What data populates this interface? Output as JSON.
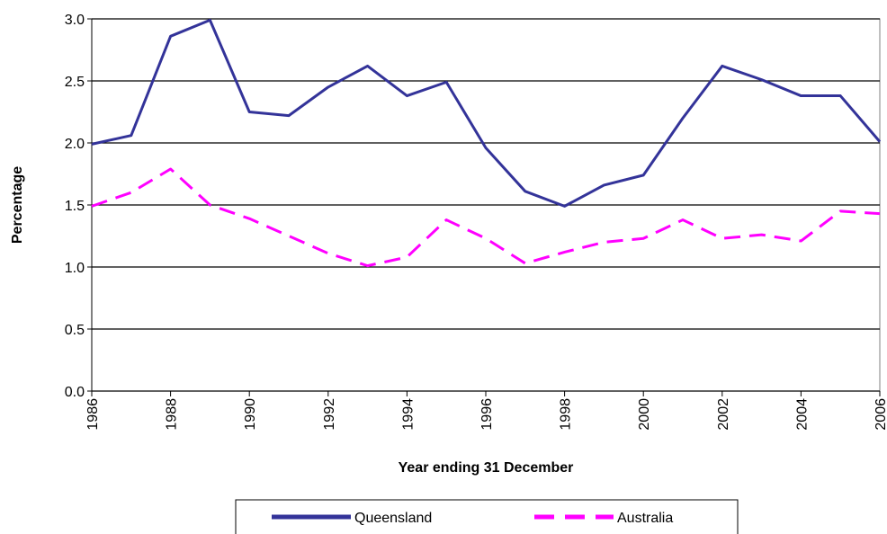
{
  "chart_data": {
    "type": "line",
    "x_label": "Year ending 31 December",
    "y_label": "Percentage",
    "x": [
      1986,
      1987,
      1988,
      1989,
      1990,
      1991,
      1992,
      1993,
      1994,
      1995,
      1996,
      1997,
      1998,
      1999,
      2000,
      2001,
      2002,
      2003,
      2004,
      2005,
      2006
    ],
    "series": [
      {
        "name": "Queensland",
        "color": "#333399",
        "dashed": false,
        "values": [
          1.99,
          2.06,
          2.86,
          2.99,
          2.25,
          2.22,
          2.45,
          2.62,
          2.38,
          2.49,
          1.96,
          1.61,
          1.49,
          1.66,
          1.74,
          2.2,
          2.62,
          2.51,
          2.38,
          2.38,
          2.01
        ]
      },
      {
        "name": "Australia",
        "color": "#ff00ff",
        "dashed": true,
        "values": [
          1.49,
          1.6,
          1.79,
          1.5,
          1.39,
          1.25,
          1.11,
          1.01,
          1.08,
          1.38,
          1.23,
          1.03,
          1.12,
          1.2,
          1.23,
          1.38,
          1.23,
          1.26,
          1.21,
          1.45,
          1.43
        ]
      }
    ],
    "xlim": [
      1986,
      2006
    ],
    "xticks": [
      1986,
      1988,
      1990,
      1992,
      1994,
      1996,
      1998,
      2000,
      2002,
      2004,
      2006
    ],
    "ylim": [
      0,
      3
    ],
    "yticks": [
      {
        "value": 0,
        "label": "0.0"
      },
      {
        "value": 0.5,
        "label": "0.5"
      },
      {
        "value": 1,
        "label": "1.0"
      },
      {
        "value": 1.5,
        "label": "1.5"
      },
      {
        "value": 2,
        "label": "2.0"
      },
      {
        "value": 2.5,
        "label": "2.5"
      },
      {
        "value": 3,
        "label": "3.0"
      }
    ],
    "grid": true,
    "legend": "bottom"
  }
}
